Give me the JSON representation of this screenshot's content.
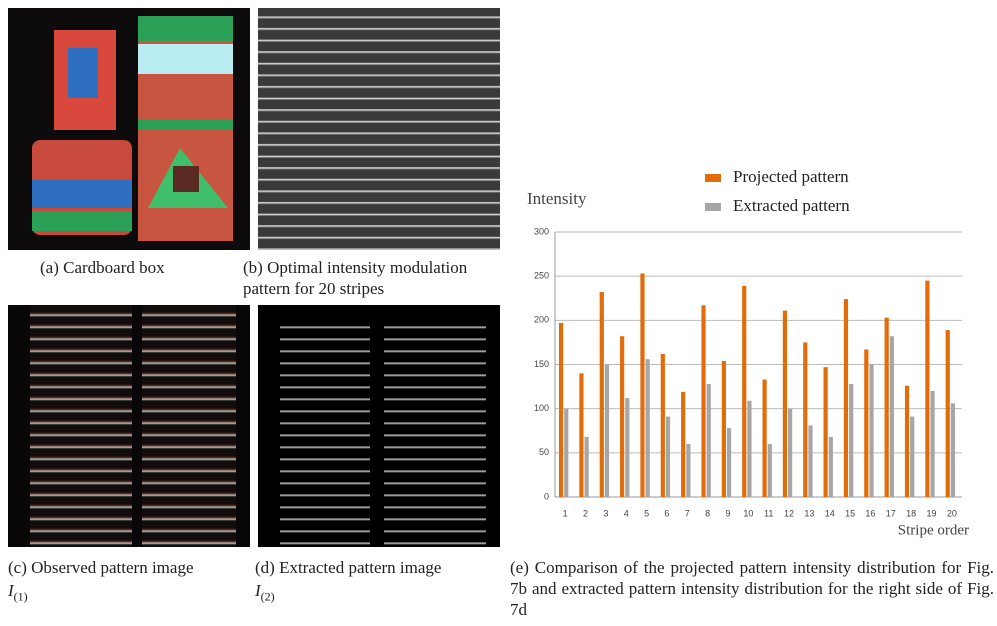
{
  "panels": [
    {
      "caption": "(a) Cardboard box"
    },
    {
      "caption_lines": [
        "(b) Optimal intensity modulation",
        "pattern for 20 stripes"
      ]
    },
    {
      "caption": "(c) Observed pattern image",
      "symbol": "I",
      "subscript": "(1)"
    },
    {
      "caption": "(d) Extracted pattern image",
      "symbol": "I",
      "subscript": "(2)"
    },
    {
      "caption": "(e) Comparison of the projected pattern intensity distribution for Fig. 7b and extracted pattern intensity distribution for the right side of Fig. 7d"
    }
  ],
  "chart_data": {
    "type": "bar",
    "y_label": "Intensity",
    "x_label": "Stripe order",
    "categories": [
      "1",
      "2",
      "3",
      "4",
      "5",
      "6",
      "7",
      "8",
      "9",
      "10",
      "11",
      "12",
      "13",
      "14",
      "15",
      "16",
      "17",
      "18",
      "19",
      "20"
    ],
    "series": [
      {
        "name": "Projected pattern",
        "color": "#e36c0a",
        "values": [
          197,
          140,
          232,
          182,
          253,
          162,
          119,
          217,
          154,
          239,
          133,
          211,
          175,
          147,
          224,
          167,
          203,
          126,
          245,
          189
        ]
      },
      {
        "name": "Extracted pattern",
        "color": "#a6a6a6",
        "values": [
          100,
          68,
          150,
          112,
          156,
          91,
          60,
          128,
          78,
          109,
          60,
          100,
          81,
          68,
          128,
          150,
          182,
          91,
          120,
          106
        ]
      }
    ],
    "ylim": [
      0,
      300
    ],
    "yticks": [
      0,
      50,
      100,
      150,
      200,
      250,
      300
    ],
    "grid": true
  }
}
